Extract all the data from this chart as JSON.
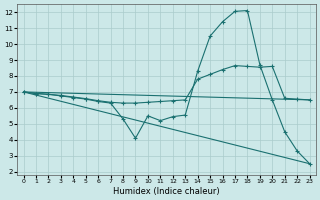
{
  "xlabel": "Humidex (Indice chaleur)",
  "bg_color": "#cce8e8",
  "grid_color": "#aacccc",
  "line_color": "#1a7070",
  "xlim": [
    -0.5,
    23.5
  ],
  "ylim": [
    1.8,
    12.5
  ],
  "yticks": [
    2,
    3,
    4,
    5,
    6,
    7,
    8,
    9,
    10,
    11,
    12
  ],
  "xticks": [
    0,
    1,
    2,
    3,
    4,
    5,
    6,
    7,
    8,
    9,
    10,
    11,
    12,
    13,
    14,
    15,
    16,
    17,
    18,
    19,
    20,
    21,
    22,
    23
  ],
  "line1_x": [
    0,
    1,
    2,
    3,
    4,
    5,
    6,
    7,
    8,
    9,
    10,
    11,
    12,
    13,
    14,
    15,
    16,
    17,
    18,
    19,
    20,
    21,
    22,
    23
  ],
  "line1_y": [
    7.0,
    6.9,
    6.85,
    6.75,
    6.65,
    6.55,
    6.4,
    6.3,
    5.3,
    4.1,
    5.5,
    5.2,
    5.45,
    5.55,
    8.3,
    10.5,
    11.4,
    12.05,
    12.1,
    8.7,
    6.5,
    4.5,
    3.3,
    2.5
  ],
  "line2_x": [
    0,
    1,
    2,
    3,
    4,
    5,
    6,
    7,
    8,
    9,
    10,
    11,
    12,
    13,
    14,
    15,
    16,
    17,
    18,
    19,
    20,
    21,
    22,
    23
  ],
  "line2_y": [
    7.0,
    6.9,
    6.85,
    6.78,
    6.68,
    6.58,
    6.45,
    6.35,
    6.3,
    6.3,
    6.35,
    6.4,
    6.45,
    6.5,
    7.8,
    8.1,
    8.4,
    8.65,
    8.6,
    8.55,
    8.6,
    6.6,
    6.55,
    6.5
  ],
  "line3_x": [
    0,
    23
  ],
  "line3_y": [
    7.0,
    2.5
  ],
  "line4_x": [
    0,
    23
  ],
  "line4_y": [
    7.0,
    6.5
  ]
}
